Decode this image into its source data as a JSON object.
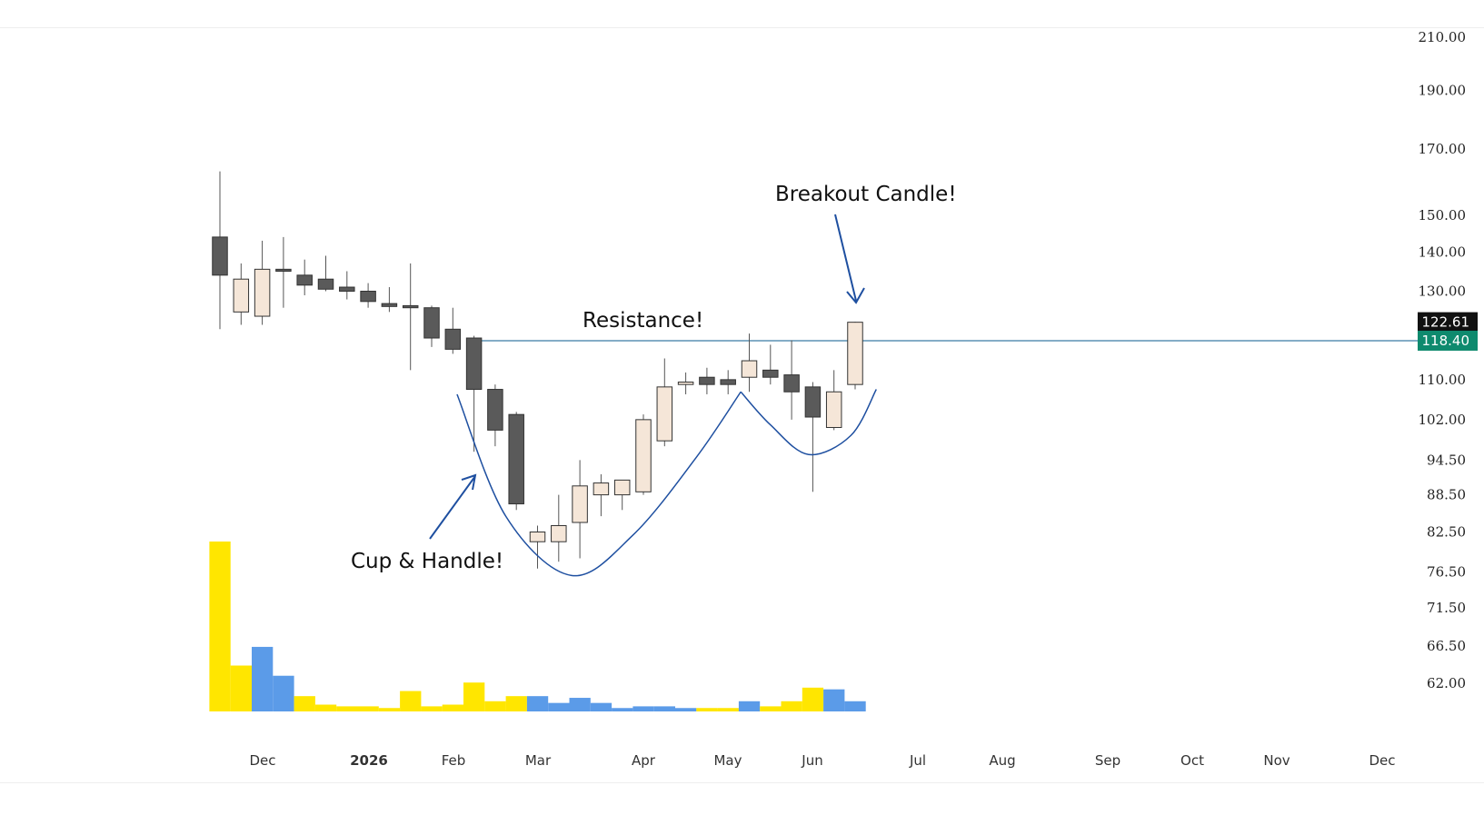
{
  "colors": {
    "up_fill": "#f5e6d8",
    "down_fill": "#5a5a5a",
    "candle_border": "#333333",
    "wick": "#555555",
    "volume_yellow": "#ffe600",
    "volume_blue": "#5b9be8",
    "line_blue": "#1e4fa0",
    "resistance_line": "#3a7ca5",
    "last_price_badge": "#111111",
    "resistance_badge": "#0e8a6e"
  },
  "chart_data": {
    "type": "candlestick",
    "title": "",
    "xlabel": "",
    "ylabel": "",
    "scale": "log",
    "ylim": [
      58,
      215
    ],
    "price_ticks": [
      "210.00",
      "190.00",
      "170.00",
      "150.00",
      "140.00",
      "130.00",
      "110.00",
      "102.00",
      "94.50",
      "88.50",
      "82.50",
      "76.50",
      "71.50",
      "66.50",
      "62.00"
    ],
    "month_ticks": [
      {
        "label": "Dec",
        "bold": false
      },
      {
        "label": "2026",
        "bold": true
      },
      {
        "label": "Feb",
        "bold": false
      },
      {
        "label": "Mar",
        "bold": false
      },
      {
        "label": "Apr",
        "bold": false
      },
      {
        "label": "May",
        "bold": false
      },
      {
        "label": "Jun",
        "bold": false
      },
      {
        "label": "Jul",
        "bold": false
      },
      {
        "label": "Aug",
        "bold": false
      },
      {
        "label": "Sep",
        "bold": false
      },
      {
        "label": "Oct",
        "bold": false
      },
      {
        "label": "Nov",
        "bold": false
      },
      {
        "label": "Dec",
        "bold": false
      }
    ],
    "candles": [
      {
        "o": 144.0,
        "h": 163.0,
        "l": 121.0,
        "c": 134.0
      },
      {
        "o": 125.0,
        "h": 137.0,
        "l": 122.0,
        "c": 133.0
      },
      {
        "o": 124.0,
        "h": 143.0,
        "l": 122.0,
        "c": 135.5
      },
      {
        "o": 135.5,
        "h": 144.0,
        "l": 126.0,
        "c": 135.0
      },
      {
        "o": 134.0,
        "h": 138.0,
        "l": 129.0,
        "c": 131.5
      },
      {
        "o": 133.0,
        "h": 139.0,
        "l": 130.0,
        "c": 130.5
      },
      {
        "o": 131.0,
        "h": 135.0,
        "l": 128.0,
        "c": 130.0
      },
      {
        "o": 130.0,
        "h": 132.0,
        "l": 126.0,
        "c": 127.5
      },
      {
        "o": 127.0,
        "h": 131.0,
        "l": 125.0,
        "c": 126.3
      },
      {
        "o": 126.5,
        "h": 137.0,
        "l": 112.0,
        "c": 126.0
      },
      {
        "o": 126.0,
        "h": 126.5,
        "l": 117.0,
        "c": 119.0
      },
      {
        "o": 121.0,
        "h": 126.0,
        "l": 115.5,
        "c": 116.5
      },
      {
        "o": 119.0,
        "h": 119.5,
        "l": 96.0,
        "c": 108.0
      },
      {
        "o": 108.0,
        "h": 109.0,
        "l": 97.0,
        "c": 100.0
      },
      {
        "o": 103.0,
        "h": 103.5,
        "l": 86.0,
        "c": 87.0
      },
      {
        "o": 81.0,
        "h": 83.5,
        "l": 77.0,
        "c": 82.5
      },
      {
        "o": 81.0,
        "h": 88.5,
        "l": 78.0,
        "c": 83.5
      },
      {
        "o": 84.0,
        "h": 94.5,
        "l": 78.5,
        "c": 90.0
      },
      {
        "o": 88.5,
        "h": 92.0,
        "l": 85.0,
        "c": 90.5
      },
      {
        "o": 88.5,
        "h": 91.0,
        "l": 86.0,
        "c": 91.0
      },
      {
        "o": 89.0,
        "h": 103.0,
        "l": 88.5,
        "c": 102.0
      },
      {
        "o": 98.0,
        "h": 114.5,
        "l": 97.0,
        "c": 108.5
      },
      {
        "o": 109.0,
        "h": 111.5,
        "l": 107.0,
        "c": 109.5
      },
      {
        "o": 110.5,
        "h": 112.5,
        "l": 107.0,
        "c": 109.0
      },
      {
        "o": 110.0,
        "h": 112.0,
        "l": 107.0,
        "c": 109.0
      },
      {
        "o": 110.5,
        "h": 120.0,
        "l": 107.5,
        "c": 114.0
      },
      {
        "o": 112.0,
        "h": 117.5,
        "l": 109.0,
        "c": 110.5
      },
      {
        "o": 111.0,
        "h": 118.5,
        "l": 102.0,
        "c": 107.5
      },
      {
        "o": 108.5,
        "h": 109.5,
        "l": 89.0,
        "c": 102.5
      },
      {
        "o": 100.5,
        "h": 112.0,
        "l": 100.0,
        "c": 107.5
      },
      {
        "o": 109.0,
        "h": 122.7,
        "l": 108.0,
        "c": 122.6
      }
    ],
    "volume": [
      {
        "v": 100,
        "c": "yellow"
      },
      {
        "v": 27,
        "c": "yellow"
      },
      {
        "v": 38,
        "c": "blue"
      },
      {
        "v": 21,
        "c": "blue"
      },
      {
        "v": 9,
        "c": "yellow"
      },
      {
        "v": 4,
        "c": "yellow"
      },
      {
        "v": 3,
        "c": "yellow"
      },
      {
        "v": 3,
        "c": "yellow"
      },
      {
        "v": 2,
        "c": "yellow"
      },
      {
        "v": 12,
        "c": "yellow"
      },
      {
        "v": 3,
        "c": "yellow"
      },
      {
        "v": 4,
        "c": "yellow"
      },
      {
        "v": 17,
        "c": "yellow"
      },
      {
        "v": 6,
        "c": "yellow"
      },
      {
        "v": 9,
        "c": "yellow"
      },
      {
        "v": 9,
        "c": "blue"
      },
      {
        "v": 5,
        "c": "blue"
      },
      {
        "v": 8,
        "c": "blue"
      },
      {
        "v": 5,
        "c": "blue"
      },
      {
        "v": 2,
        "c": "blue"
      },
      {
        "v": 3,
        "c": "blue"
      },
      {
        "v": 3,
        "c": "blue"
      },
      {
        "v": 2,
        "c": "blue"
      },
      {
        "v": 2,
        "c": "yellow"
      },
      {
        "v": 2,
        "c": "yellow"
      },
      {
        "v": 6,
        "c": "blue"
      },
      {
        "v": 3,
        "c": "yellow"
      },
      {
        "v": 6,
        "c": "yellow"
      },
      {
        "v": 14,
        "c": "yellow"
      },
      {
        "v": 13,
        "c": "blue"
      },
      {
        "v": 6,
        "c": "blue"
      }
    ],
    "resistance_level": 118.4,
    "last_price": 122.61,
    "last_price_label": "122.61",
    "resistance_label": "118.40",
    "annotations": {
      "breakout": "Breakout Candle!",
      "resistance": "Resistance!",
      "cup_handle": "Cup & Handle!"
    },
    "cup_curve": [
      {
        "i": 11.2,
        "p": 107.0
      },
      {
        "i": 13.5,
        "p": 85.0
      },
      {
        "i": 16.6,
        "p": 76.0
      },
      {
        "i": 19.5,
        "p": 82.0
      },
      {
        "i": 22.5,
        "p": 95.0
      },
      {
        "i": 24.6,
        "p": 107.5
      }
    ],
    "handle_curve": [
      {
        "i": 24.6,
        "p": 107.5
      },
      {
        "i": 26.0,
        "p": 101.0
      },
      {
        "i": 27.8,
        "p": 95.5
      },
      {
        "i": 29.8,
        "p": 99.0
      },
      {
        "i": 31.0,
        "p": 108.0
      }
    ]
  }
}
